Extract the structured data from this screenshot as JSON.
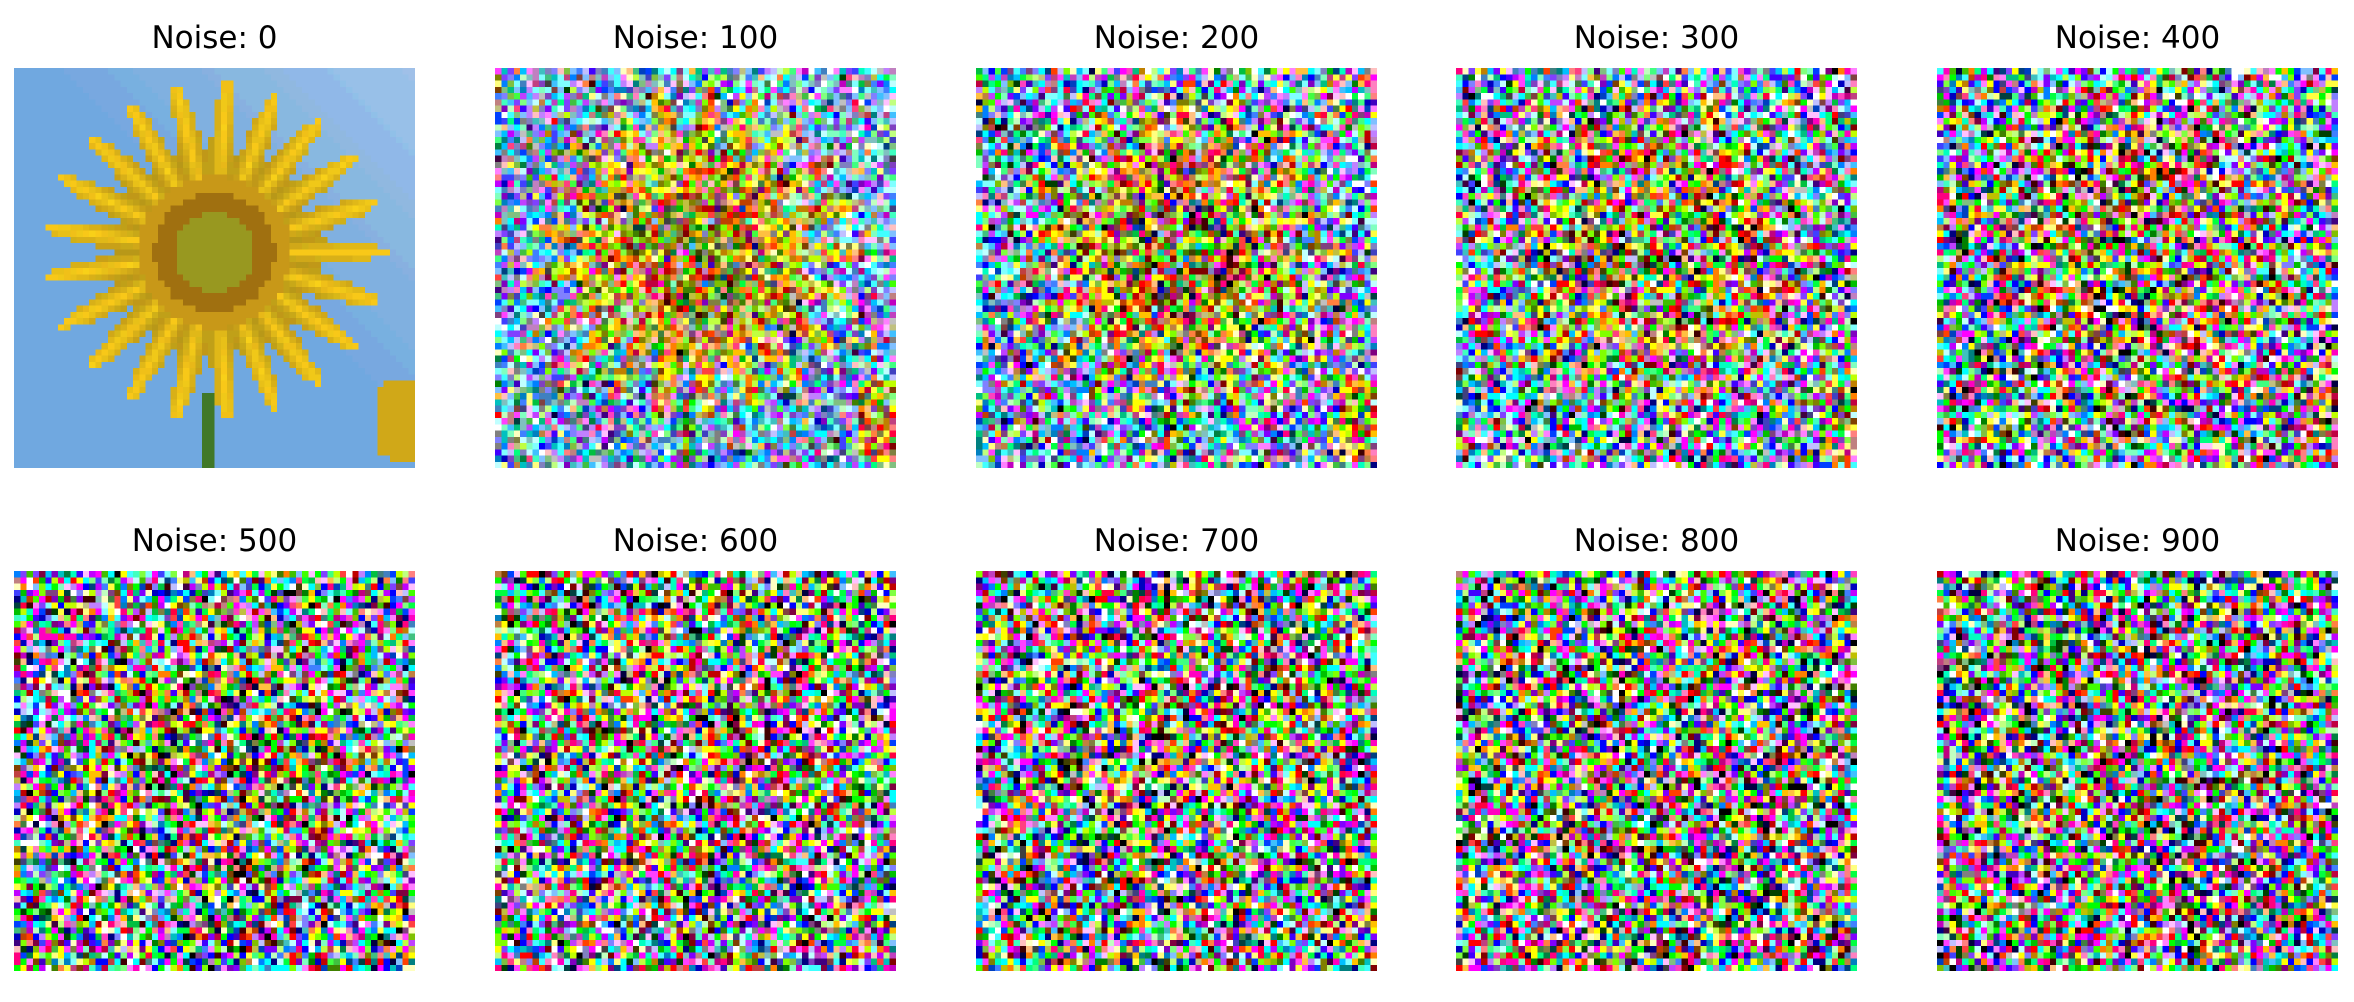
{
  "panels": [
    {
      "title": "Noise: 0"
    },
    {
      "title": "Noise: 100"
    },
    {
      "title": "Noise: 200"
    },
    {
      "title": "Noise: 300"
    },
    {
      "title": "Noise: 400"
    },
    {
      "title": "Noise: 500"
    },
    {
      "title": "Noise: 600"
    },
    {
      "title": "Noise: 700"
    },
    {
      "title": "Noise: 800"
    },
    {
      "title": "Noise: 900"
    }
  ]
}
